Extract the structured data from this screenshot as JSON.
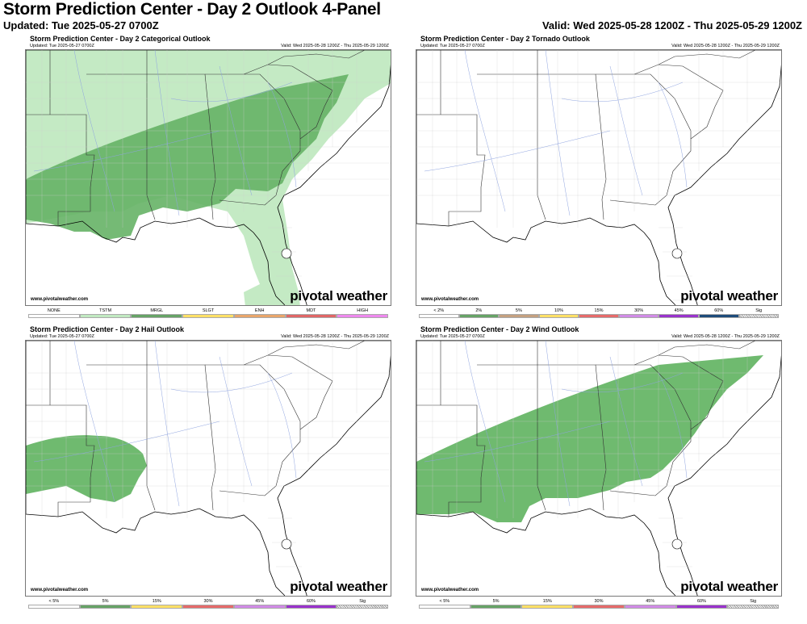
{
  "header": {
    "title": "Storm Prediction Center - Day 2 Outlook 4-Panel",
    "updated": "Updated: Tue 2025-05-27 0700Z",
    "valid": "Valid: Wed 2025-05-28 1200Z - Thu 2025-05-29 1200Z"
  },
  "panels": [
    {
      "title": "Storm Prediction Center - Day 2 Categorical Outlook",
      "updated": "Updated: Tue 2025-05-27 0700Z",
      "valid": "Valid: Wed 2025-05-28 1200Z - Thu 2025-05-29 1200Z",
      "credit": "www.pivotalweather.com",
      "logo": "pivotal weather",
      "legend": [
        {
          "label": "NONE",
          "color": "#ffffff"
        },
        {
          "label": "TSTM",
          "color": "#c1e9c1"
        },
        {
          "label": "MRGL",
          "color": "#66a366"
        },
        {
          "label": "SLGT",
          "color": "#ffe066"
        },
        {
          "label": "ENH",
          "color": "#e8a56a"
        },
        {
          "label": "MDT",
          "color": "#e06666"
        },
        {
          "label": "HIGH",
          "color": "#ee88ee"
        }
      ]
    },
    {
      "title": "Storm Prediction Center - Day 2 Tornado Outlook",
      "updated": "Updated: Tue 2025-05-27 0700Z",
      "valid": "Valid: Wed 2025-05-28 1200Z - Thu 2025-05-29 1200Z",
      "credit": "www.pivotalweather.com",
      "logo": "pivotal weather",
      "legend": [
        {
          "label": "< 2%",
          "color": "#ffffff"
        },
        {
          "label": "2%",
          "color": "#66a366"
        },
        {
          "label": "5%",
          "color": "#c4a080"
        },
        {
          "label": "10%",
          "color": "#ffe066"
        },
        {
          "label": "15%",
          "color": "#e66a6a"
        },
        {
          "label": "30%",
          "color": "#d08ae6"
        },
        {
          "label": "45%",
          "color": "#9932cc"
        },
        {
          "label": "60%",
          "color": "#1e4b7a"
        },
        {
          "label": "Sig",
          "color": "hatch"
        }
      ]
    },
    {
      "title": "Storm Prediction Center - Day 2 Hail Outlook",
      "updated": "Updated: Tue 2025-05-27 0700Z",
      "valid": "Valid: Wed 2025-05-28 1200Z - Thu 2025-05-29 1200Z",
      "credit": "www.pivotalweather.com",
      "logo": "pivotal weather",
      "legend": [
        {
          "label": "< 5%",
          "color": "#ffffff"
        },
        {
          "label": "5%",
          "color": "#66a366"
        },
        {
          "label": "15%",
          "color": "#ffe066"
        },
        {
          "label": "30%",
          "color": "#e66a6a"
        },
        {
          "label": "45%",
          "color": "#d08ae6"
        },
        {
          "label": "60%",
          "color": "#9932cc"
        },
        {
          "label": "Sig",
          "color": "hatch"
        }
      ]
    },
    {
      "title": "Storm Prediction Center - Day 2 Wind Outlook",
      "updated": "Updated: Tue 2025-05-27 0700Z",
      "valid": "Valid: Wed 2025-05-28 1200Z - Thu 2025-05-29 1200Z",
      "credit": "www.pivotalweather.com",
      "logo": "pivotal weather",
      "legend": [
        {
          "label": "< 5%",
          "color": "#ffffff"
        },
        {
          "label": "5%",
          "color": "#66a366"
        },
        {
          "label": "15%",
          "color": "#ffe066"
        },
        {
          "label": "30%",
          "color": "#e66a6a"
        },
        {
          "label": "45%",
          "color": "#d08ae6"
        },
        {
          "label": "60%",
          "color": "#9932cc"
        },
        {
          "label": "Sig",
          "color": "hatch"
        }
      ]
    }
  ],
  "colors": {
    "tstm": "#c1e9c1",
    "mrgl": "#66b366",
    "risk5": "#5fb35f"
  }
}
